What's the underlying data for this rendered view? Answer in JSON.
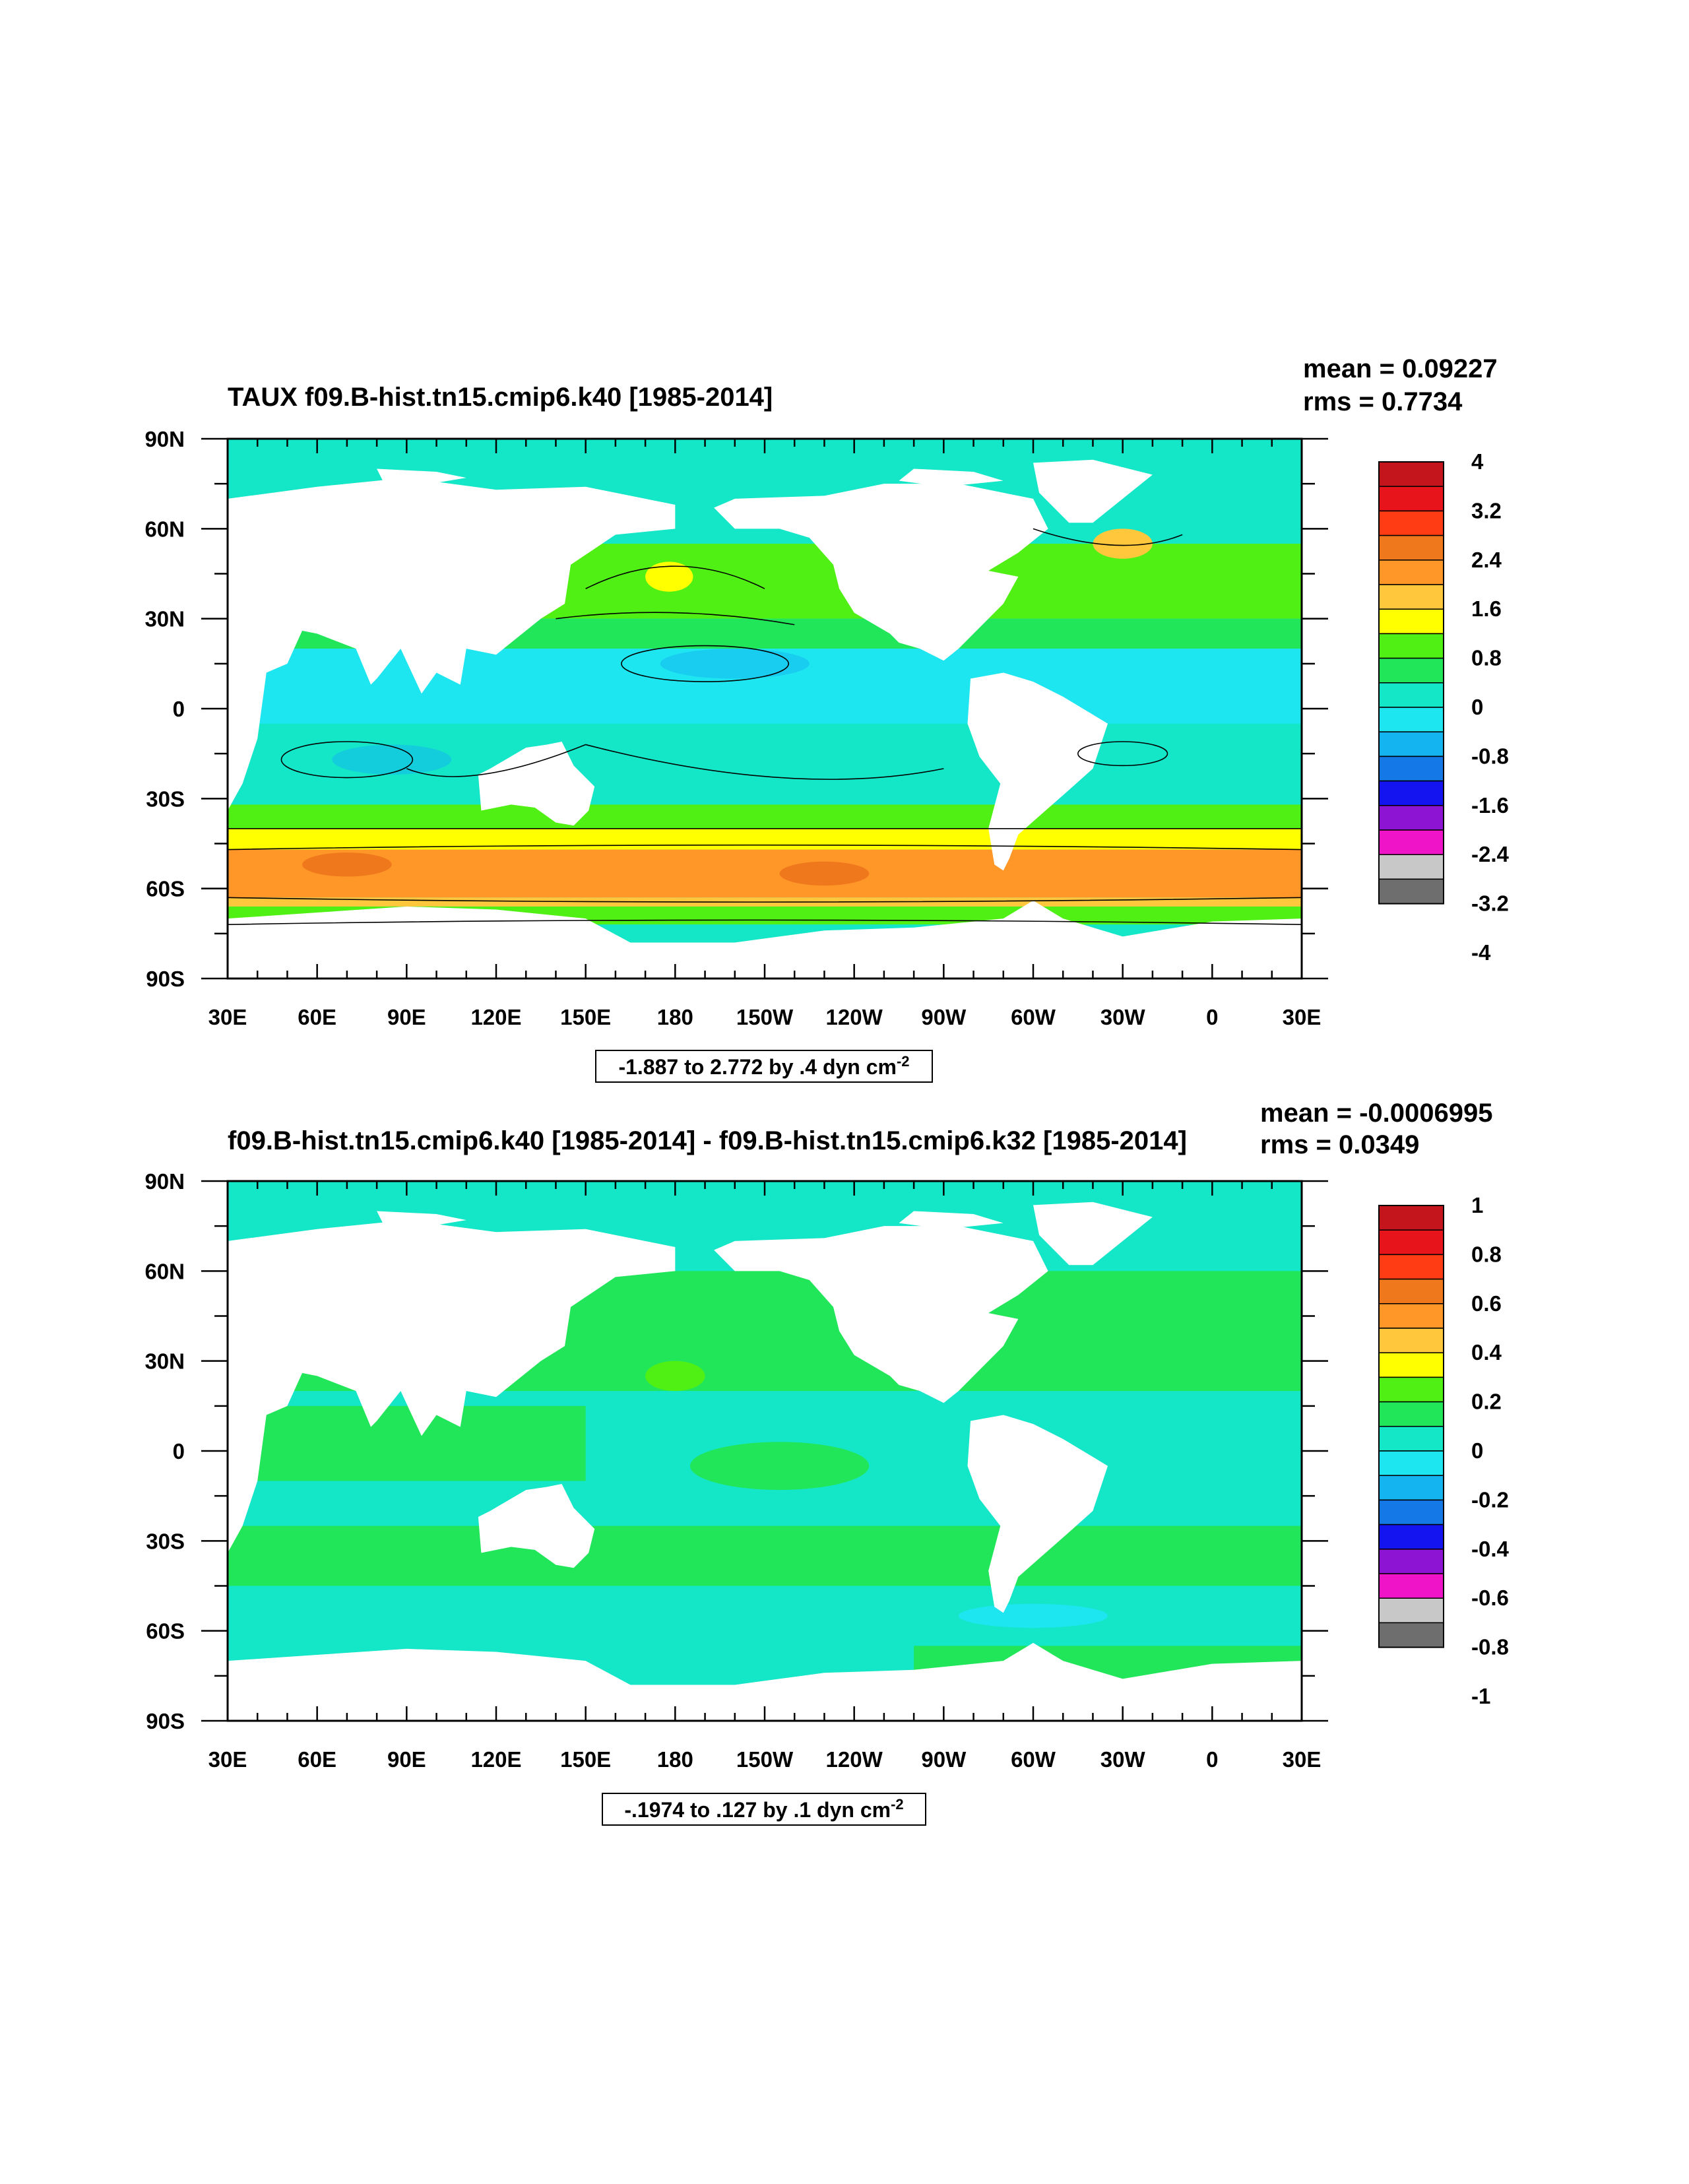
{
  "figure": {
    "panels": [
      {
        "id": "top",
        "title": "TAUX f09.B-hist.tn15.cmip6.k40 [1985-2014]",
        "mean_label": "mean = 0.09227",
        "rms_label": "rms = 0.7734",
        "caption": "-1.887 to 2.772 by .4 dyn cm",
        "caption_exp": "-2",
        "colorbar_labels": [
          "4",
          "3.2",
          "2.4",
          "1.6",
          "0.8",
          "0",
          "-0.8",
          "-1.6",
          "-2.4",
          "-3.2",
          "-4"
        ]
      },
      {
        "id": "bottom",
        "title": "f09.B-hist.tn15.cmip6.k40 [1985-2014] - f09.B-hist.tn15.cmip6.k32 [1985-2014]",
        "mean_label": "mean = -0.0006995",
        "rms_label": "rms = 0.0349",
        "caption": "-.1974 to .127 by .1 dyn cm",
        "caption_exp": "-2",
        "colorbar_labels": [
          "1",
          "0.8",
          "0.6",
          "0.4",
          "0.2",
          "0",
          "-0.2",
          "-0.4",
          "-0.6",
          "-0.8",
          "-1"
        ]
      }
    ],
    "lon_labels": [
      "30E",
      "60E",
      "90E",
      "120E",
      "150E",
      "180",
      "150W",
      "120W",
      "90W",
      "60W",
      "30W",
      "0",
      "30E"
    ],
    "lat_labels": [
      "90N",
      "60N",
      "30N",
      "0",
      "30S",
      "60S",
      "90S"
    ],
    "colors": [
      "#c4141c",
      "#e8141c",
      "#ff3c14",
      "#f0781c",
      "#ff9628",
      "#ffc83c",
      "#ffff00",
      "#50f014",
      "#22e65a",
      "#14e6c8",
      "#1ee6f0",
      "#14b4f0",
      "#1478e6",
      "#1414f0",
      "#8c14d2",
      "#f014c8",
      "#c8c8c8",
      "#6e6e6e"
    ]
  }
}
